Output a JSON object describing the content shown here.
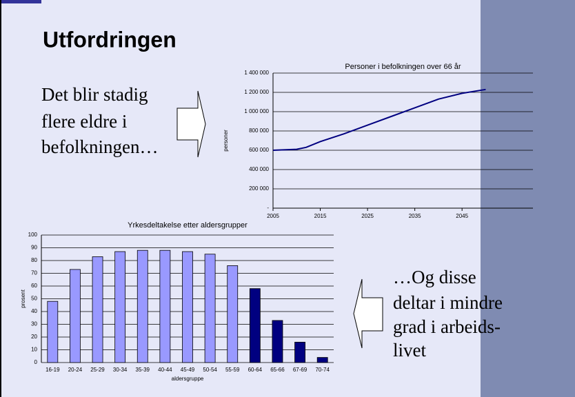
{
  "slide": {
    "title": "Utfordringen",
    "left_text": [
      "Det blir stadig",
      "flere eldre i",
      "befolkningen…"
    ],
    "right_text": [
      "…Og disse",
      "deltar i mindre",
      "grad i arbeids-",
      "livet"
    ]
  },
  "chart_data": [
    {
      "type": "line",
      "title": "Personer i befolkningen over 66 år",
      "y_label": "personer",
      "x": [
        2005,
        2010,
        2012,
        2015,
        2020,
        2025,
        2030,
        2035,
        2040,
        2045,
        2050
      ],
      "values": [
        600000,
        610000,
        630000,
        690000,
        770000,
        860000,
        950000,
        1040000,
        1130000,
        1190000,
        1230000
      ],
      "color": "#000080",
      "xlim": [
        2005,
        2060
      ],
      "xticks": [
        2005,
        2015,
        2025,
        2035,
        2045
      ],
      "ylim": [
        0,
        1400000
      ],
      "yticks": [
        {
          "value": 0,
          "label": "-"
        },
        {
          "value": 200000,
          "label": "200 000"
        },
        {
          "value": 400000,
          "label": "400 000"
        },
        {
          "value": 600000,
          "label": "600 000"
        },
        {
          "value": 800000,
          "label": "800 000"
        },
        {
          "value": 1000000,
          "label": "1 000 000"
        },
        {
          "value": 1200000,
          "label": "1 200 000"
        },
        {
          "value": 1400000,
          "label": "1 400 000"
        }
      ],
      "grid": true
    },
    {
      "type": "bar",
      "title": "Yrkesdeltakelse etter aldersgrupper",
      "x_label": "aldersgruppe",
      "y_label": "prosent",
      "categories": [
        "16-19",
        "20-24",
        "25-29",
        "30-34",
        "35-39",
        "40-44",
        "45-49",
        "50-54",
        "55-59",
        "60-64",
        "65-66",
        "67-69",
        "70-74"
      ],
      "values": [
        48,
        73,
        83,
        87,
        88,
        88,
        87,
        85,
        76,
        58,
        33,
        16,
        4
      ],
      "colors": [
        "#9999ff",
        "#9999ff",
        "#9999ff",
        "#9999ff",
        "#9999ff",
        "#9999ff",
        "#9999ff",
        "#9999ff",
        "#9999ff",
        "#000080",
        "#000080",
        "#000080",
        "#000080"
      ],
      "ylim": [
        0,
        100
      ],
      "yticks": [
        0,
        10,
        20,
        30,
        40,
        50,
        60,
        70,
        80,
        90,
        100
      ],
      "grid": true
    }
  ]
}
